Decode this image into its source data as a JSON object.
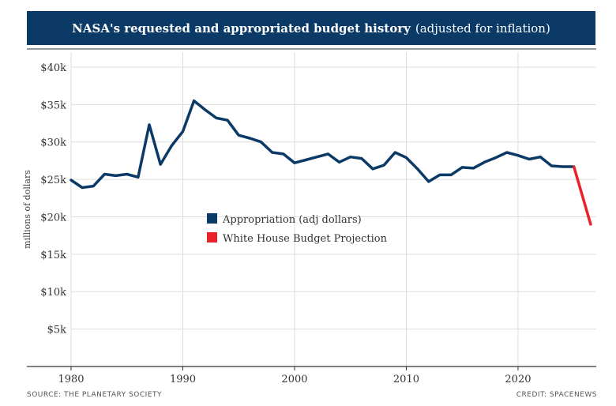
{
  "header": {
    "title_bold": "NASA's requested and appropriated budget history",
    "title_light": "(adjusted for inflation)"
  },
  "footer": {
    "source": "SOURCE: THE PLANETARY SOCIETY",
    "credit": "CREDIT: SPACENEWS"
  },
  "chart_data": {
    "type": "line",
    "title": "NASA's requested and appropriated budget history (adjusted for inflation)",
    "xlabel": "",
    "ylabel": "millions of dollars",
    "xlim": [
      1980,
      2027
    ],
    "ylim": [
      0,
      42000
    ],
    "x_ticks": [
      1980,
      1990,
      2000,
      2010,
      2020
    ],
    "y_ticks": [
      5000,
      10000,
      15000,
      20000,
      25000,
      30000,
      35000,
      40000
    ],
    "y_tick_labels": [
      "$5k",
      "$10k",
      "$15k",
      "$20k",
      "$25k",
      "$30k",
      "$35k",
      "$40k"
    ],
    "grid": true,
    "legend_position": "center-left",
    "colors": {
      "appropriation": "#0b3a66",
      "projection": "#e8222a",
      "grid": "#dddddd",
      "axis": "#333333"
    },
    "series": [
      {
        "name": "Appropriation (adj dollars)",
        "color": "#0b3a66",
        "x": [
          1980,
          1981,
          1982,
          1983,
          1984,
          1985,
          1986,
          1987,
          1988,
          1989,
          1990,
          1991,
          1992,
          1993,
          1994,
          1995,
          1996,
          1997,
          1998,
          1999,
          2000,
          2001,
          2002,
          2003,
          2004,
          2005,
          2006,
          2007,
          2008,
          2009,
          2010,
          2011,
          2012,
          2013,
          2014,
          2015,
          2016,
          2017,
          2018,
          2019,
          2020,
          2021,
          2022,
          2023,
          2024,
          2025
        ],
        "values": [
          24900,
          23900,
          24100,
          25700,
          25500,
          25700,
          25300,
          32300,
          27000,
          29500,
          31400,
          35500,
          34300,
          33200,
          32900,
          30900,
          30500,
          30000,
          28600,
          28400,
          27200,
          27600,
          28000,
          28400,
          27300,
          28000,
          27800,
          26400,
          26900,
          28600,
          27900,
          26400,
          24700,
          25600,
          25600,
          26600,
          26500,
          27300,
          27900,
          28600,
          28200,
          27700,
          28000,
          26800,
          26700,
          26700
        ]
      },
      {
        "name": "White House Budget Projection",
        "color": "#e8222a",
        "x": [
          2025,
          2026.5
        ],
        "values": [
          26700,
          19000
        ]
      }
    ]
  }
}
